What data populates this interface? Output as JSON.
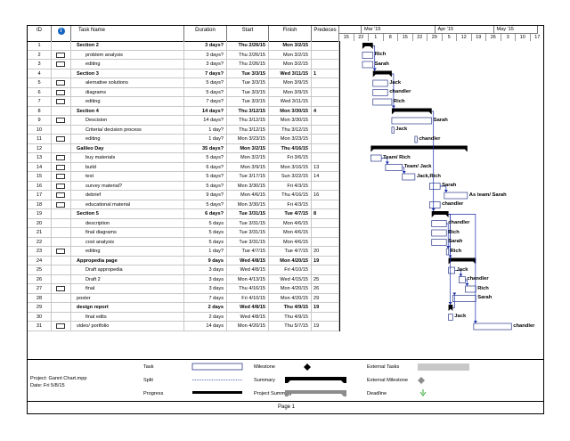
{
  "columns": {
    "id": "ID",
    "task_name": "Task Name",
    "duration": "Duration",
    "start": "Start",
    "finish": "Finish",
    "predecessors": "Predeces"
  },
  "timescale": {
    "months": [
      "Mar '15",
      "Apr '15",
      "May '15"
    ],
    "days": [
      "15",
      "22",
      "1",
      "8",
      "15",
      "22",
      "29",
      "5",
      "12",
      "19",
      "26",
      "3",
      "10",
      "17"
    ]
  },
  "tasks": [
    {
      "id": "1",
      "name": "Section 2",
      "duration": "3 days?",
      "start": "Thu 2/26/15",
      "finish": "Mon 3/2/15",
      "pred": "",
      "summary": true,
      "note": false,
      "label": ""
    },
    {
      "id": "2",
      "name": "problem analysis",
      "duration": "3 days?",
      "start": "Thu 2/26/15",
      "finish": "Mon 3/2/15",
      "pred": "",
      "summary": false,
      "note": true,
      "label": "Rich"
    },
    {
      "id": "3",
      "name": "editing",
      "duration": "3 days?",
      "start": "Thu 2/26/15",
      "finish": "Mon 3/2/15",
      "pred": "",
      "summary": false,
      "note": true,
      "label": "Sarah"
    },
    {
      "id": "4",
      "name": "Section 3",
      "duration": "7 days?",
      "start": "Tue 3/3/15",
      "finish": "Wed 3/11/15",
      "pred": "1",
      "summary": true,
      "note": false,
      "label": ""
    },
    {
      "id": "5",
      "name": "alernative solutions",
      "duration": "5 days?",
      "start": "Tue 3/3/15",
      "finish": "Mon 3/9/15",
      "pred": "",
      "summary": false,
      "note": true,
      "label": "Jack"
    },
    {
      "id": "6",
      "name": "diagrams",
      "duration": "5 days?",
      "start": "Tue 3/3/15",
      "finish": "Mon 3/9/15",
      "pred": "",
      "summary": false,
      "note": true,
      "label": "chandler"
    },
    {
      "id": "7",
      "name": "editing",
      "duration": "7 days?",
      "start": "Tue 3/3/15",
      "finish": "Wed 3/11/15",
      "pred": "",
      "summary": false,
      "note": true,
      "label": "Rich"
    },
    {
      "id": "8",
      "name": "Section 4",
      "duration": "14 days?",
      "start": "Thu 3/12/15",
      "finish": "Mon 3/30/15",
      "pred": "4",
      "summary": true,
      "note": false,
      "label": ""
    },
    {
      "id": "9",
      "name": "Descision",
      "duration": "14 days?",
      "start": "Thu 3/12/15",
      "finish": "Mon 3/30/15",
      "pred": "",
      "summary": false,
      "note": true,
      "label": "Sarah"
    },
    {
      "id": "10",
      "name": "Criteria/ decision process",
      "duration": "1 day?",
      "start": "Thu 3/12/15",
      "finish": "Thu 3/12/15",
      "pred": "",
      "summary": false,
      "note": false,
      "label": "Jack"
    },
    {
      "id": "11",
      "name": "editing",
      "duration": "1 day?",
      "start": "Mon 3/23/15",
      "finish": "Mon 3/23/15",
      "pred": "",
      "summary": false,
      "note": true,
      "label": "chandler"
    },
    {
      "id": "12",
      "name": "Galileo Day",
      "duration": "35 days?",
      "start": "Mon 3/2/15",
      "finish": "Thu 4/16/15",
      "pred": "",
      "summary": true,
      "note": false,
      "label": ""
    },
    {
      "id": "13",
      "name": "buy materials",
      "duration": "5 days?",
      "start": "Mon 3/2/15",
      "finish": "Fri 3/6/15",
      "pred": "",
      "summary": false,
      "note": true,
      "label": "Team/ Rich"
    },
    {
      "id": "14",
      "name": "build",
      "duration": "6 days?",
      "start": "Mon 3/9/15",
      "finish": "Mon 3/16/15",
      "pred": "13",
      "summary": false,
      "note": true,
      "label": "Team/ Jack"
    },
    {
      "id": "15",
      "name": "test",
      "duration": "5 days?",
      "start": "Tue 3/17/15",
      "finish": "Sun 3/22/15",
      "pred": "14",
      "summary": false,
      "note": true,
      "label": "Jack,Rich"
    },
    {
      "id": "16",
      "name": "survey material?",
      "duration": "5 days?",
      "start": "Mon 3/30/15",
      "finish": "Fri 4/3/15",
      "pred": "",
      "summary": false,
      "note": true,
      "label": "Sarah"
    },
    {
      "id": "17",
      "name": "debrief",
      "duration": "9 days?",
      "start": "Mon 4/6/15",
      "finish": "Thu 4/16/15",
      "pred": "16",
      "summary": false,
      "note": true,
      "label": "As team/ Sarah"
    },
    {
      "id": "18",
      "name": "educational material",
      "duration": "5 days?",
      "start": "Mon 3/30/15",
      "finish": "Fri 4/3/15",
      "pred": "",
      "summary": false,
      "note": true,
      "label": "chandler"
    },
    {
      "id": "19",
      "name": "Section 5",
      "duration": "6 days?",
      "start": "Tue 3/31/15",
      "finish": "Tue 4/7/15",
      "pred": "8",
      "summary": true,
      "note": false,
      "label": ""
    },
    {
      "id": "20",
      "name": "description",
      "duration": "5 days",
      "start": "Tue 3/31/15",
      "finish": "Mon 4/6/15",
      "pred": "",
      "summary": false,
      "note": false,
      "label": "chandler"
    },
    {
      "id": "21",
      "name": "final diagrams",
      "duration": "5 days",
      "start": "Tue 3/31/15",
      "finish": "Mon 4/6/15",
      "pred": "",
      "summary": false,
      "note": false,
      "label": "Rich"
    },
    {
      "id": "22",
      "name": "cost analysis",
      "duration": "5 days",
      "start": "Tue 3/31/15",
      "finish": "Mon 4/6/15",
      "pred": "",
      "summary": false,
      "note": false,
      "label": "Sarah"
    },
    {
      "id": "23",
      "name": "editing",
      "duration": "1 day?",
      "start": "Tue 4/7/15",
      "finish": "Tue 4/7/15",
      "pred": "20",
      "summary": false,
      "note": true,
      "label": "Rich"
    },
    {
      "id": "24",
      "name": "Appropedia page",
      "duration": "9 days",
      "start": "Wed 4/8/15",
      "finish": "Mon 4/20/15",
      "pred": "19",
      "summary": true,
      "note": false,
      "label": ""
    },
    {
      "id": "25",
      "name": "Draft appropedia",
      "duration": "3 days",
      "start": "Wed 4/8/15",
      "finish": "Fri 4/10/15",
      "pred": "",
      "summary": false,
      "note": false,
      "label": "Jack"
    },
    {
      "id": "26",
      "name": "Draft 2",
      "duration": "3 days",
      "start": "Mon 4/13/15",
      "finish": "Wed 4/15/15",
      "pred": "25",
      "summary": false,
      "note": false,
      "label": "chandler"
    },
    {
      "id": "27",
      "name": "final",
      "duration": "3 days",
      "start": "Thu 4/16/15",
      "finish": "Mon 4/20/15",
      "pred": "26",
      "summary": false,
      "note": true,
      "label": "Rich"
    },
    {
      "id": "28",
      "name": "poster",
      "duration": "7 days",
      "start": "Fri 4/10/15",
      "finish": "Mon 4/20/15",
      "pred": "29",
      "summary": false,
      "note": false,
      "label": "Sarah"
    },
    {
      "id": "29",
      "name": "design report",
      "duration": "2 days",
      "start": "Wed 4/8/15",
      "finish": "Thu 4/9/15",
      "pred": "19",
      "summary": true,
      "note": false,
      "label": ""
    },
    {
      "id": "30",
      "name": "final edits",
      "duration": "2 days",
      "start": "Wed 4/8/15",
      "finish": "Thu 4/9/15",
      "pred": "",
      "summary": false,
      "note": false,
      "label": "Jack"
    },
    {
      "id": "31",
      "name": "video/ portfolio",
      "duration": "14 days",
      "start": "Mon 4/20/15",
      "finish": "Thu 5/7/15",
      "pred": "19",
      "summary": false,
      "note": true,
      "label": "chandler"
    }
  ],
  "legend": {
    "project": "Project: Gannt Chart.mpp",
    "date": "Date: Fri 5/8/15",
    "items": [
      "Task",
      "Split",
      "Progress",
      "Milestone",
      "Summary",
      "Project Summary",
      "External Tasks",
      "External Milestone",
      "Deadline"
    ]
  },
  "footer": {
    "page": "Page 1"
  },
  "colors": {
    "bar_border": "#2d3a8c",
    "summary": "#000000",
    "link": "#1a2ea8",
    "gridline": "#c8c8c8"
  }
}
